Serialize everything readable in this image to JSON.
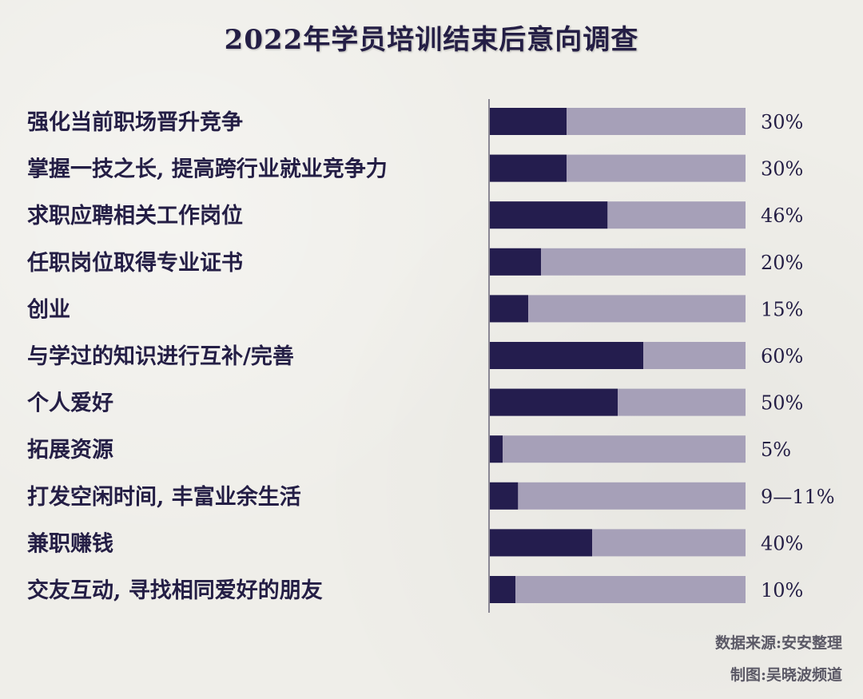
{
  "chart_data": {
    "type": "bar",
    "orientation": "horizontal",
    "title": "2022年学员培训结束后意向调查",
    "categories": [
      "强化当前职场晋升竞争",
      "掌握一技之长, 提高跨行业就业竞争力",
      "求职应聘相关工作岗位",
      "任职岗位取得专业证书",
      "创业",
      "与学过的知识进行互补/完善",
      "个人爱好",
      "拓展资源",
      "打发空闲时间, 丰富业余生活",
      "兼职赚钱",
      "交友互动, 寻找相同爱好的朋友"
    ],
    "values": [
      30,
      30,
      46,
      20,
      15,
      60,
      50,
      5,
      11,
      40,
      10
    ],
    "value_labels": [
      "30%",
      "30%",
      "46%",
      "20%",
      "15%",
      "60%",
      "50%",
      "5%",
      "9—11%",
      "40%",
      "10%"
    ],
    "xlim": [
      0,
      100
    ],
    "grid": false,
    "colors": {
      "value": "#241d4e",
      "track": "#a6a0b8"
    }
  },
  "footer": {
    "source": "数据来源:安安整理",
    "maker": "制图:吴晓波频道"
  }
}
